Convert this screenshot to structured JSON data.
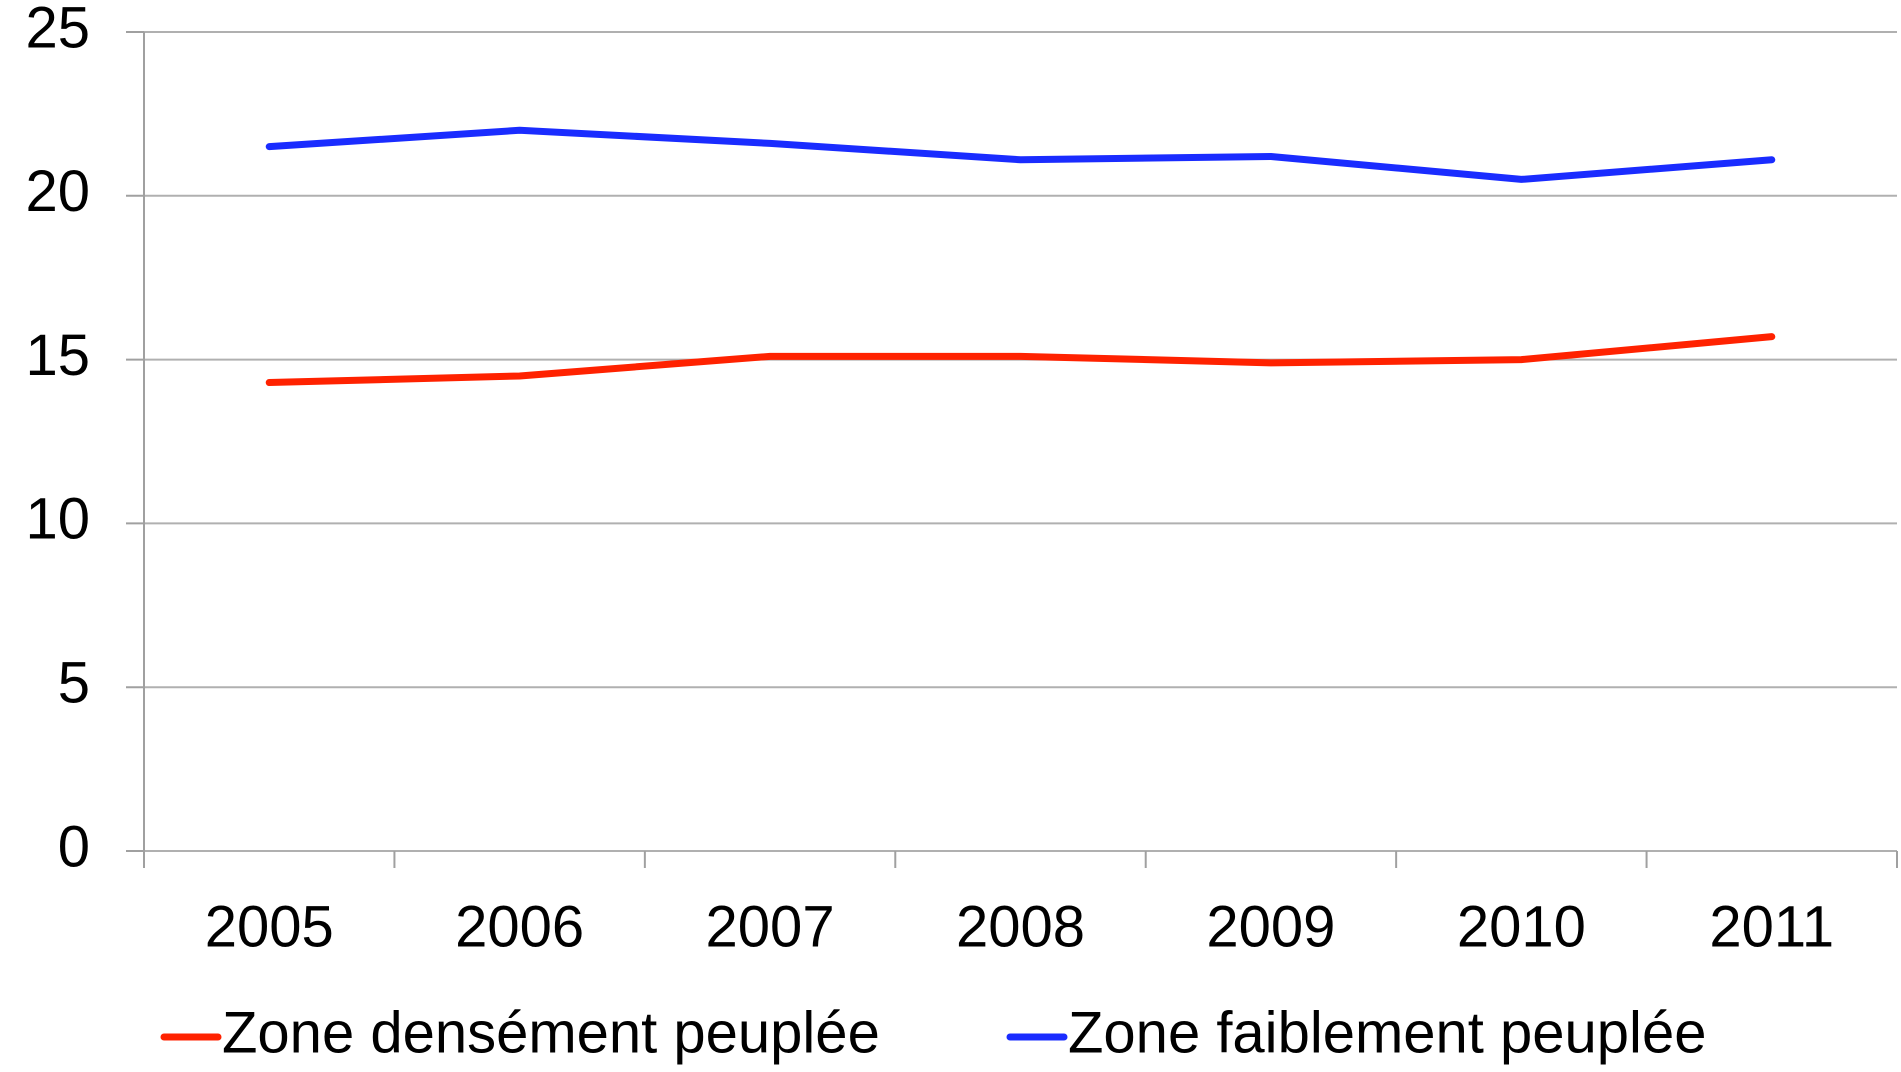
{
  "chart_data": {
    "type": "line",
    "categories": [
      "2005",
      "2006",
      "2007",
      "2008",
      "2009",
      "2010",
      "2011"
    ],
    "series": [
      {
        "name": "Zone densément peuplée",
        "color": "#ff2200",
        "values": [
          14.3,
          14.5,
          15.1,
          15.1,
          14.9,
          15.0,
          15.7
        ]
      },
      {
        "name": "Zone faiblement peuplée",
        "color": "#1a2cff",
        "values": [
          21.5,
          22.0,
          21.6,
          21.1,
          21.2,
          20.5,
          21.1
        ]
      }
    ],
    "ylim": [
      0,
      25
    ],
    "yticks": [
      0,
      5,
      10,
      15,
      20,
      25
    ],
    "grid": true,
    "legend": "bottom"
  }
}
